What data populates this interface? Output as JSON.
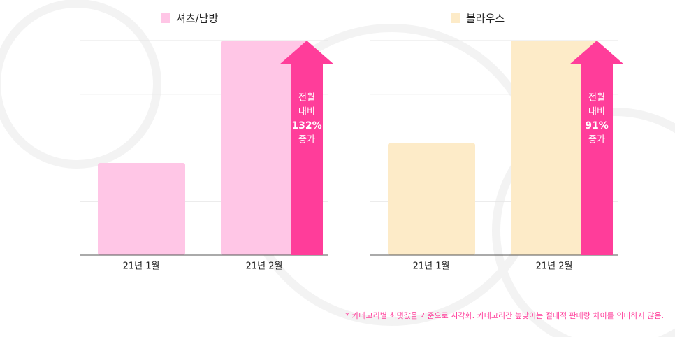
{
  "chart_data": [
    {
      "type": "bar",
      "categories": [
        "21년 1월",
        "21년 2월"
      ],
      "series": [
        {
          "name": "셔츠/남방",
          "color": "#ffc6e6",
          "values": [
            1.72,
            4
          ]
        }
      ],
      "ylim": [
        0,
        4
      ],
      "yticks": [
        0,
        1,
        2,
        3,
        4
      ],
      "grid": true,
      "annotation": {
        "lines": [
          "전월",
          "대비",
          "132%",
          "증가"
        ],
        "color": "#ff3d9a"
      }
    },
    {
      "type": "bar",
      "categories": [
        "21년 1월",
        "21년 2월"
      ],
      "series": [
        {
          "name": "블라우스",
          "color": "#fdebc8",
          "values": [
            2.09,
            4
          ]
        }
      ],
      "ylim": [
        0,
        4
      ],
      "yticks": [
        0,
        1,
        2,
        3,
        4
      ],
      "grid": true,
      "annotation": {
        "lines": [
          "전월",
          "대비",
          "91%",
          "증가"
        ],
        "color": "#ff3d9a"
      }
    }
  ],
  "footnote": "* 카테고리별 최댓값을 기준으로 시각화. 카테고리간 높낮이는 절대적 판매량 차이를 의미하지 않음."
}
